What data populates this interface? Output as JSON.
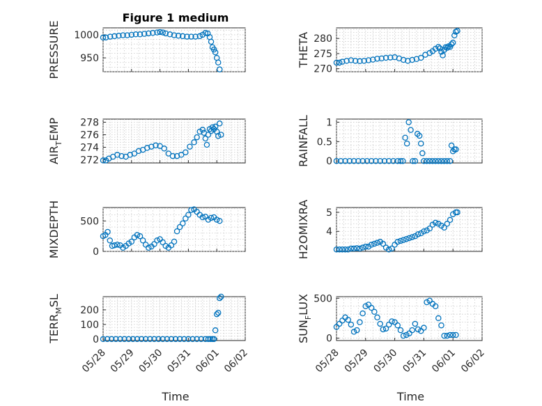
{
  "figure": {
    "title": "Figure 1 medium",
    "marker_color": "#0072BD",
    "marker_style": "open-circle"
  },
  "chart_data": [
    {
      "type": "scatter",
      "id": "pressure",
      "title": "Figure 1 medium",
      "ylabel": "PRESSURE",
      "ylabel_sub": "",
      "xlabel": "",
      "xlim": [
        0,
        5
      ],
      "ylim": [
        920,
        1015
      ],
      "yticks": [
        950,
        1000
      ],
      "xticks": [
        0,
        1,
        2,
        3,
        4,
        5
      ],
      "xticklabels": [],
      "grid": true,
      "x": [
        0.0,
        0.1,
        0.25,
        0.4,
        0.55,
        0.7,
        0.85,
        1.0,
        1.15,
        1.3,
        1.45,
        1.6,
        1.75,
        1.9,
        2.0,
        2.1,
        2.2,
        2.35,
        2.5,
        2.65,
        2.8,
        2.95,
        3.1,
        3.25,
        3.4,
        3.5,
        3.6,
        3.68,
        3.75,
        3.8,
        3.85,
        3.9,
        3.95,
        4.0,
        4.05,
        4.1
      ],
      "y": [
        994,
        994,
        996,
        997,
        998,
        999,
        999,
        1000,
        1001,
        1001,
        1002,
        1003,
        1004,
        1005,
        1006,
        1005,
        1003,
        1001,
        999,
        998,
        997,
        996,
        996,
        996,
        997,
        1000,
        1004,
        1003,
        995,
        985,
        973,
        968,
        962,
        950,
        940,
        925
      ]
    },
    {
      "type": "scatter",
      "id": "theta",
      "ylabel": "THETA",
      "ylabel_sub": "",
      "xlabel": "",
      "xlim": [
        0,
        5
      ],
      "ylim": [
        269,
        283.5
      ],
      "yticks": [
        270,
        275,
        280
      ],
      "xticks": [
        0,
        1,
        2,
        3,
        4,
        5
      ],
      "xticklabels": [],
      "grid": true,
      "x": [
        0.0,
        0.1,
        0.2,
        0.35,
        0.5,
        0.65,
        0.8,
        0.95,
        1.1,
        1.25,
        1.4,
        1.55,
        1.7,
        1.85,
        2.0,
        2.15,
        2.3,
        2.45,
        2.6,
        2.75,
        2.9,
        3.05,
        3.2,
        3.3,
        3.4,
        3.5,
        3.55,
        3.6,
        3.65,
        3.7,
        3.75,
        3.8,
        3.85,
        3.9,
        3.95,
        4.0,
        4.05,
        4.1,
        4.15
      ],
      "y": [
        272.0,
        272.0,
        272.3,
        272.6,
        272.8,
        272.6,
        272.5,
        272.6,
        272.8,
        273.0,
        273.3,
        273.4,
        273.6,
        273.7,
        273.8,
        273.4,
        272.9,
        272.6,
        272.9,
        273.2,
        273.6,
        274.6,
        275.2,
        275.8,
        276.6,
        277.2,
        276.7,
        275.6,
        274.4,
        276.2,
        277.1,
        276.9,
        277.4,
        277.2,
        278.1,
        278.6,
        281.0,
        282.2,
        282.5
      ]
    },
    {
      "type": "scatter",
      "id": "air_temp",
      "ylabel": "AIR",
      "ylabel_sub": "T",
      "ylabel_rest": "EMP",
      "xlabel": "",
      "xlim": [
        0,
        5
      ],
      "ylim": [
        271.5,
        278.5
      ],
      "yticks": [
        272,
        274,
        276,
        278
      ],
      "xticks": [
        0,
        1,
        2,
        3,
        4,
        5
      ],
      "xticklabels": [],
      "grid": true,
      "x": [
        0.0,
        0.1,
        0.2,
        0.35,
        0.5,
        0.65,
        0.8,
        0.95,
        1.1,
        1.25,
        1.4,
        1.55,
        1.7,
        1.85,
        2.0,
        2.15,
        2.3,
        2.45,
        2.6,
        2.75,
        2.9,
        3.05,
        3.2,
        3.3,
        3.4,
        3.5,
        3.55,
        3.6,
        3.65,
        3.7,
        3.75,
        3.8,
        3.85,
        3.9,
        3.95,
        4.0,
        4.05,
        4.1,
        4.15
      ],
      "y": [
        271.9,
        271.9,
        272.2,
        272.5,
        272.8,
        272.6,
        272.5,
        272.8,
        273.0,
        273.4,
        273.6,
        273.9,
        274.1,
        274.3,
        274.2,
        273.8,
        273.0,
        272.6,
        272.6,
        272.8,
        273.2,
        274.1,
        274.8,
        275.6,
        276.5,
        276.8,
        276.3,
        275.4,
        274.4,
        276.0,
        276.9,
        276.6,
        277.2,
        276.9,
        277.3,
        276.5,
        275.8,
        277.8,
        276.0
      ]
    },
    {
      "type": "scatter",
      "id": "rainfall",
      "ylabel": "RAINFALL",
      "ylabel_sub": "",
      "xlabel": "",
      "xlim": [
        0,
        5
      ],
      "ylim": [
        -0.05,
        1.08
      ],
      "yticks": [
        0,
        0.5,
        1
      ],
      "yticklabels": [
        "0",
        "0.5",
        "1"
      ],
      "xticks": [
        0,
        1,
        2,
        3,
        4,
        5
      ],
      "xticklabels": [],
      "grid": true,
      "x": [
        0.0,
        0.15,
        0.3,
        0.45,
        0.6,
        0.75,
        0.9,
        1.05,
        1.2,
        1.35,
        1.5,
        1.65,
        1.8,
        1.95,
        2.1,
        2.2,
        2.28,
        2.36,
        2.42,
        2.48,
        2.55,
        2.62,
        2.7,
        2.78,
        2.85,
        2.9,
        2.95,
        3.0,
        3.1,
        3.2,
        3.3,
        3.4,
        3.5,
        3.6,
        3.7,
        3.8,
        3.9,
        3.95,
        4.0,
        4.05,
        4.1
      ],
      "y": [
        0,
        0,
        0,
        0,
        0,
        0,
        0,
        0,
        0,
        0,
        0,
        0,
        0,
        0,
        0,
        0,
        0,
        0.6,
        0.45,
        1.0,
        0.8,
        0,
        0,
        0.7,
        0.65,
        0.45,
        0.2,
        0,
        0,
        0,
        0,
        0,
        0,
        0,
        0,
        0,
        0,
        0.4,
        0.25,
        0.3,
        0.3
      ]
    },
    {
      "type": "scatter",
      "id": "mixdepth",
      "ylabel": "MIXDEPTH",
      "ylabel_sub": "",
      "xlabel": "",
      "xlim": [
        0,
        5
      ],
      "ylim": [
        0,
        720
      ],
      "yticks": [
        0,
        500
      ],
      "xticks": [
        0,
        1,
        2,
        3,
        4,
        5
      ],
      "xticklabels": [],
      "grid": true,
      "x": [
        0.0,
        0.08,
        0.16,
        0.24,
        0.32,
        0.4,
        0.5,
        0.6,
        0.7,
        0.8,
        0.9,
        1.0,
        1.1,
        1.2,
        1.3,
        1.4,
        1.5,
        1.6,
        1.7,
        1.8,
        1.9,
        2.0,
        2.1,
        2.2,
        2.3,
        2.4,
        2.5,
        2.6,
        2.7,
        2.8,
        2.9,
        3.0,
        3.1,
        3.2,
        3.3,
        3.4,
        3.5,
        3.6,
        3.7,
        3.8,
        3.9,
        4.0,
        4.1
      ],
      "y": [
        250,
        270,
        320,
        180,
        90,
        100,
        110,
        100,
        60,
        90,
        130,
        160,
        230,
        270,
        250,
        180,
        110,
        60,
        80,
        120,
        180,
        200,
        150,
        90,
        60,
        100,
        160,
        330,
        400,
        460,
        540,
        600,
        680,
        690,
        650,
        600,
        560,
        570,
        520,
        550,
        560,
        520,
        500
      ]
    },
    {
      "type": "scatter",
      "id": "h2omixra",
      "ylabel": "H2OMIXRA",
      "ylabel_sub": "",
      "xlabel": "",
      "xlim": [
        0,
        5
      ],
      "ylim": [
        2.95,
        5.25
      ],
      "yticks": [
        4,
        5
      ],
      "xticks": [
        0,
        1,
        2,
        3,
        4,
        5
      ],
      "xticklabels": [],
      "grid": true,
      "x": [
        0.0,
        0.1,
        0.2,
        0.3,
        0.4,
        0.5,
        0.6,
        0.7,
        0.8,
        0.9,
        1.0,
        1.1,
        1.2,
        1.3,
        1.4,
        1.5,
        1.6,
        1.7,
        1.8,
        1.9,
        2.0,
        2.1,
        2.2,
        2.3,
        2.4,
        2.5,
        2.6,
        2.7,
        2.8,
        2.9,
        3.0,
        3.1,
        3.2,
        3.3,
        3.4,
        3.5,
        3.6,
        3.7,
        3.8,
        3.9,
        4.0,
        4.1,
        4.15
      ],
      "y": [
        3.05,
        3.05,
        3.05,
        3.05,
        3.05,
        3.1,
        3.1,
        3.12,
        3.1,
        3.15,
        3.2,
        3.2,
        3.3,
        3.35,
        3.4,
        3.45,
        3.35,
        3.15,
        3.05,
        3.1,
        3.3,
        3.45,
        3.5,
        3.55,
        3.6,
        3.65,
        3.7,
        3.75,
        3.85,
        3.9,
        4.0,
        4.05,
        4.15,
        4.35,
        4.45,
        4.4,
        4.3,
        4.2,
        4.4,
        4.6,
        4.9,
        5.0,
        5.0
      ]
    },
    {
      "type": "scatter",
      "id": "terr_msl",
      "ylabel": "TERR",
      "ylabel_sub": "M",
      "ylabel_rest": "SL",
      "xlabel": "Time",
      "xlim": [
        0,
        5
      ],
      "ylim": [
        -10,
        290
      ],
      "yticks": [
        0,
        100,
        200
      ],
      "xticks": [
        0,
        1,
        2,
        3,
        4,
        5
      ],
      "xticklabels": [
        "05/28",
        "05/29",
        "05/30",
        "05/31",
        "06/01",
        "06/02"
      ],
      "grid": true,
      "x": [
        0.0,
        0.15,
        0.3,
        0.45,
        0.6,
        0.75,
        0.9,
        1.05,
        1.2,
        1.35,
        1.5,
        1.65,
        1.8,
        1.95,
        2.1,
        2.25,
        2.4,
        2.55,
        2.7,
        2.85,
        3.0,
        3.15,
        3.3,
        3.45,
        3.6,
        3.7,
        3.78,
        3.85,
        3.9,
        3.95,
        4.0,
        4.05,
        4.1,
        4.15
      ],
      "y": [
        0,
        0,
        0,
        0,
        0,
        0,
        0,
        0,
        0,
        0,
        0,
        0,
        0,
        0,
        0,
        0,
        0,
        0,
        0,
        0,
        0,
        0,
        0,
        0,
        0,
        0,
        0,
        0,
        0,
        60,
        170,
        180,
        280,
        290
      ]
    },
    {
      "type": "scatter",
      "id": "sun_flux",
      "ylabel": "SUN",
      "ylabel_sub": "F",
      "ylabel_rest": "LUX",
      "xlabel": "Time",
      "xlim": [
        0,
        5
      ],
      "ylim": [
        -30,
        520
      ],
      "yticks": [
        0,
        500
      ],
      "xticks": [
        0,
        1,
        2,
        3,
        4,
        5
      ],
      "xticklabels": [
        "05/28",
        "05/29",
        "05/30",
        "05/31",
        "06/01",
        "06/02"
      ],
      "grid": true,
      "x": [
        0.0,
        0.1,
        0.2,
        0.3,
        0.4,
        0.5,
        0.6,
        0.7,
        0.8,
        0.9,
        1.0,
        1.1,
        1.2,
        1.3,
        1.4,
        1.5,
        1.6,
        1.7,
        1.8,
        1.9,
        2.0,
        2.1,
        2.2,
        2.3,
        2.4,
        2.5,
        2.6,
        2.7,
        2.8,
        2.9,
        3.0,
        3.1,
        3.2,
        3.3,
        3.4,
        3.5,
        3.6,
        3.7,
        3.8,
        3.9,
        4.0,
        4.1
      ],
      "y": [
        140,
        180,
        220,
        260,
        230,
        170,
        80,
        100,
        200,
        310,
        400,
        420,
        380,
        330,
        260,
        180,
        110,
        120,
        170,
        210,
        200,
        160,
        100,
        30,
        40,
        60,
        100,
        180,
        110,
        90,
        130,
        450,
        470,
        430,
        400,
        250,
        160,
        30,
        30,
        40,
        40,
        40
      ]
    }
  ]
}
